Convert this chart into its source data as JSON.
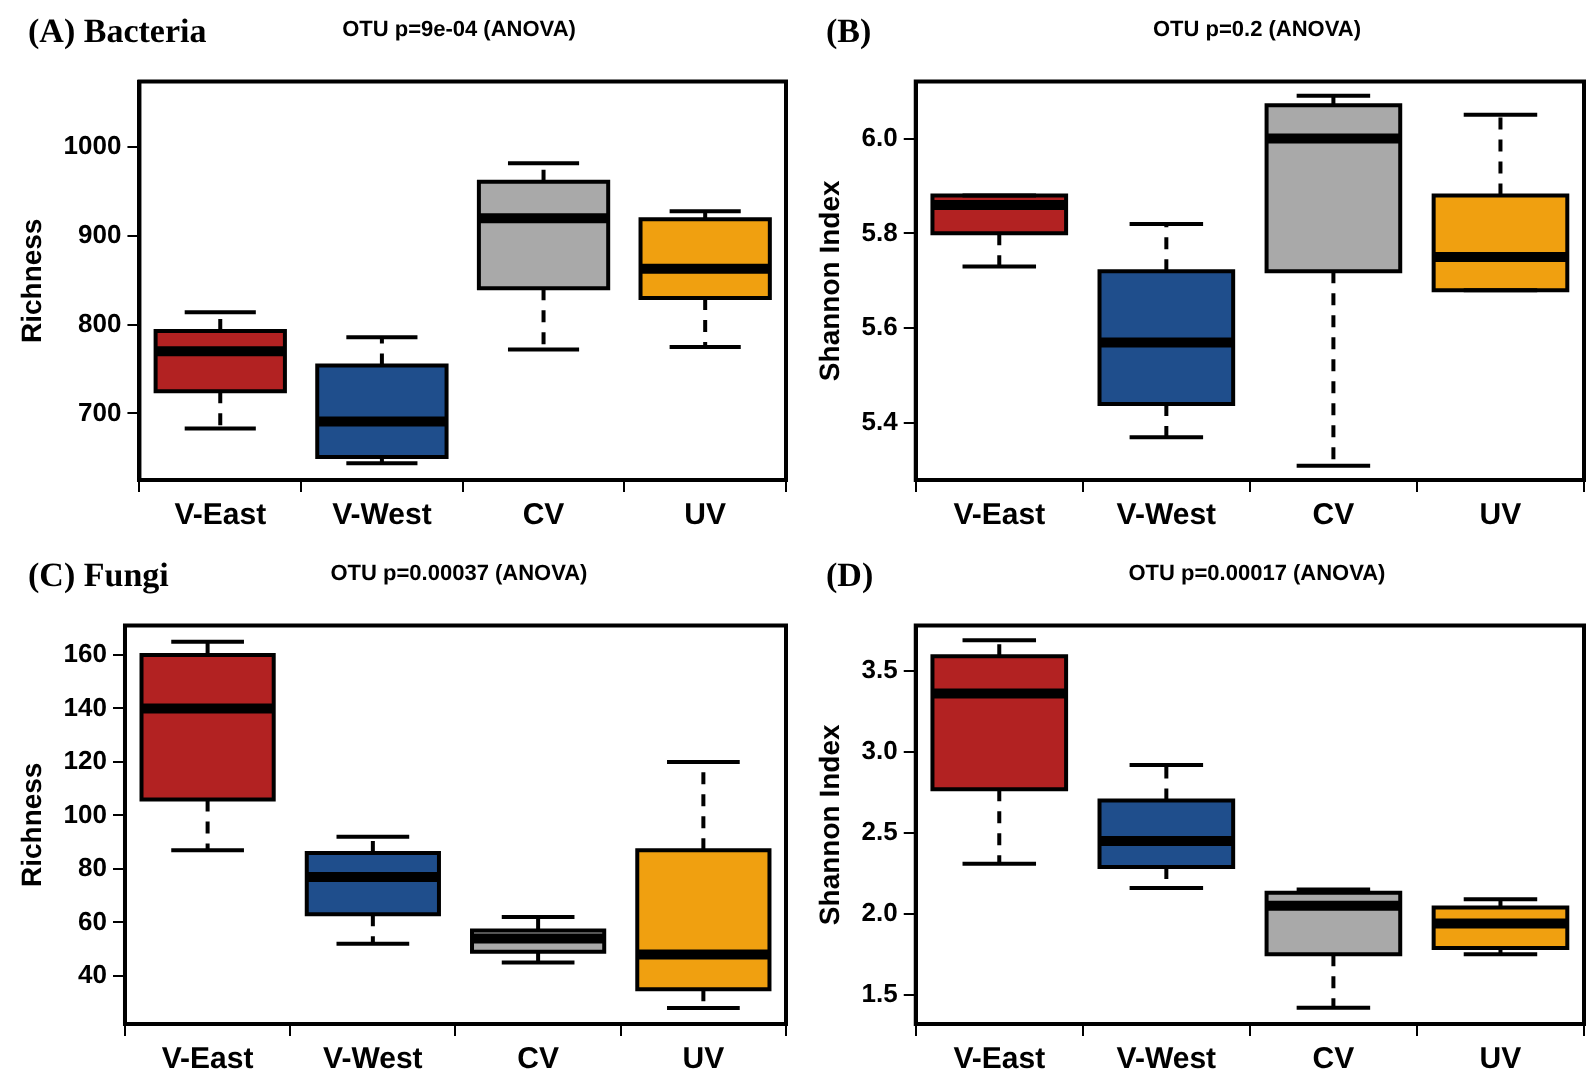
{
  "chart_data": [
    {
      "type": "box",
      "title": "(A) Bacteria",
      "subtitle": "OTU p=9e-04 (ANOVA)",
      "ylabel": "Richness",
      "categories": [
        "V-East",
        "V-West",
        "CV",
        "UV"
      ],
      "colors": [
        "#b22222",
        "#1f4e8c",
        "#a9a9a9",
        "#f0a010"
      ],
      "ylim": [
        625,
        1074
      ],
      "yticks": [
        700,
        800,
        900,
        1000
      ],
      "grid": false,
      "legend": false,
      "boxes": [
        {
          "low": 683,
          "q1": 725,
          "median": 770,
          "q3": 793,
          "high": 814
        },
        {
          "low": 644,
          "q1": 651,
          "median": 691,
          "q3": 754,
          "high": 786
        },
        {
          "low": 772,
          "q1": 841,
          "median": 920,
          "q3": 961,
          "high": 982
        },
        {
          "low": 775,
          "q1": 830,
          "median": 863,
          "q3": 919,
          "high": 928
        }
      ]
    },
    {
      "type": "box",
      "title": "(B)",
      "subtitle": "OTU p=0.2 (ANOVA)",
      "ylabel": "Shannon Index",
      "categories": [
        "V-East",
        "V-West",
        "CV",
        "UV"
      ],
      "colors": [
        "#b22222",
        "#1f4e8c",
        "#a9a9a9",
        "#f0a010"
      ],
      "ylim": [
        5.28,
        6.12
      ],
      "yticks": [
        {
          "value": 5.4,
          "label": "5.4"
        },
        {
          "value": 5.6,
          "label": "5.6"
        },
        {
          "value": 5.8,
          "label": "5.8"
        },
        {
          "value": 6.0,
          "label": "6.0"
        }
      ],
      "grid": false,
      "legend": false,
      "boxes": [
        {
          "low": 5.73,
          "q1": 5.8,
          "median": 5.86,
          "q3": 5.88,
          "high": 5.88
        },
        {
          "low": 5.37,
          "q1": 5.44,
          "median": 5.57,
          "q3": 5.72,
          "high": 5.82
        },
        {
          "low": 5.31,
          "q1": 5.72,
          "median": 6.0,
          "q3": 6.07,
          "high": 6.09
        },
        {
          "low": 5.68,
          "q1": 5.68,
          "median": 5.75,
          "q3": 5.88,
          "high": 6.05
        }
      ]
    },
    {
      "type": "box",
      "title": "(C) Fungi",
      "subtitle": "OTU p=0.00037 (ANOVA)",
      "ylabel": "Richness",
      "categories": [
        "V-East",
        "V-West",
        "CV",
        "UV"
      ],
      "colors": [
        "#b22222",
        "#1f4e8c",
        "#a9a9a9",
        "#f0a010"
      ],
      "ylim": [
        22,
        171
      ],
      "yticks": [
        40,
        60,
        80,
        100,
        120,
        140,
        160
      ],
      "grid": false,
      "legend": false,
      "boxes": [
        {
          "low": 87,
          "q1": 106,
          "median": 140,
          "q3": 160,
          "high": 165
        },
        {
          "low": 52,
          "q1": 63,
          "median": 77,
          "q3": 86,
          "high": 92
        },
        {
          "low": 45,
          "q1": 49,
          "median": 54,
          "q3": 57,
          "high": 62
        },
        {
          "low": 28,
          "q1": 35,
          "median": 48,
          "q3": 87,
          "high": 120
        }
      ]
    },
    {
      "type": "box",
      "title": "(D)",
      "subtitle": "OTU p=0.00017 (ANOVA)",
      "ylabel": "Shannon Index",
      "categories": [
        "V-East",
        "V-West",
        "CV",
        "UV"
      ],
      "colors": [
        "#b22222",
        "#1f4e8c",
        "#a9a9a9",
        "#f0a010"
      ],
      "ylim": [
        1.32,
        3.78
      ],
      "yticks": [
        {
          "value": 1.5,
          "label": "1.5"
        },
        {
          "value": 2.0,
          "label": "2.0"
        },
        {
          "value": 2.5,
          "label": "2.5"
        },
        {
          "value": 3.0,
          "label": "3.0"
        },
        {
          "value": 3.5,
          "label": "3.5"
        }
      ],
      "grid": false,
      "legend": false,
      "boxes": [
        {
          "low": 2.31,
          "q1": 2.77,
          "median": 3.36,
          "q3": 3.59,
          "high": 3.69
        },
        {
          "low": 2.16,
          "q1": 2.29,
          "median": 2.45,
          "q3": 2.7,
          "high": 2.92
        },
        {
          "low": 1.42,
          "q1": 1.75,
          "median": 2.05,
          "q3": 2.13,
          "high": 2.15
        },
        {
          "low": 1.75,
          "q1": 1.79,
          "median": 1.94,
          "q3": 2.04,
          "high": 2.09
        }
      ]
    }
  ]
}
